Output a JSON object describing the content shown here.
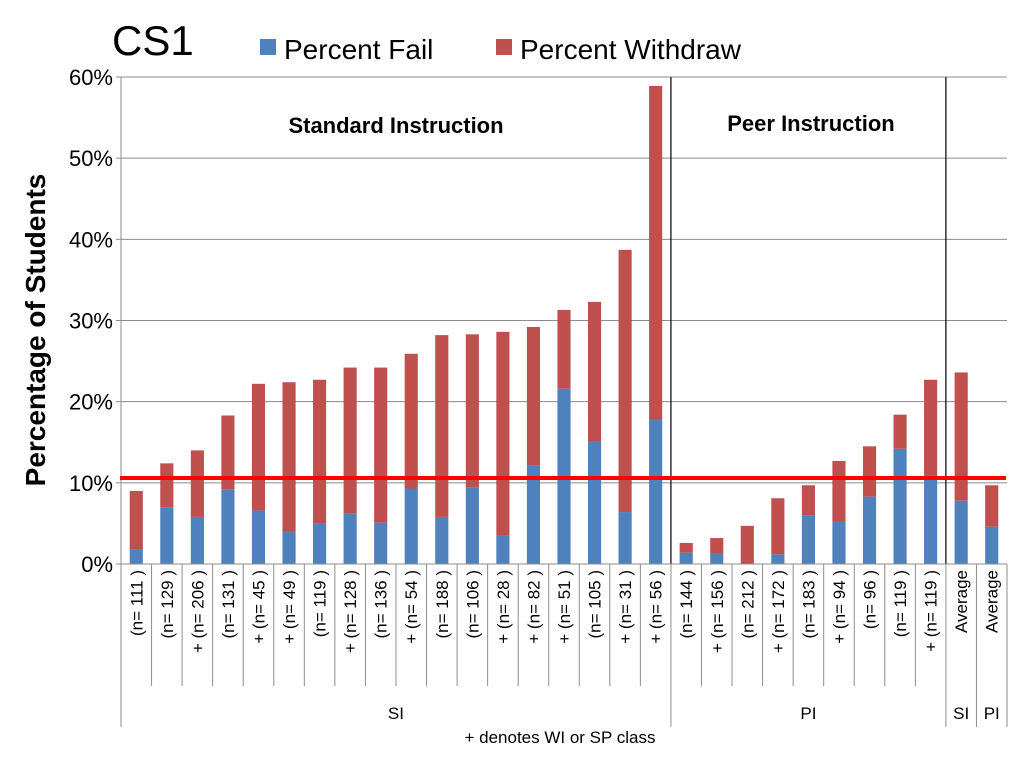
{
  "chart_data": {
    "type": "bar",
    "stacked": true,
    "title": "CS1",
    "xlabel": "",
    "ylabel": "Percentage of Students",
    "ylim": [
      0,
      60
    ],
    "yticks": [
      "0%",
      "10%",
      "20%",
      "30%",
      "40%",
      "50%",
      "60%"
    ],
    "grid": true,
    "legend_position": "top",
    "categories": [
      "(n= 111 )",
      "(n= 129 )",
      "+ (n= 206 )",
      "(n= 131 )",
      "+ (n= 45 )",
      "+ (n= 49 )",
      "(n= 119 )",
      "+ (n= 128 )",
      "(n= 136 )",
      "+ (n= 54 )",
      "(n= 188 )",
      "(n= 106 )",
      "+ (n= 28 )",
      "+ (n= 82 )",
      "+ (n= 51 )",
      "(n= 105 )",
      "+ (n= 31 )",
      "+ (n= 56 )",
      "(n= 144 )",
      "+ (n= 156 )",
      "(n= 212 )",
      "+ (n= 172 )",
      "(n= 183 )",
      "+ (n= 94 )",
      "(n= 96 )",
      "(n= 119 )",
      "+ (n= 119 )",
      "Average",
      "Average"
    ],
    "series": [
      {
        "name": "Percent Fail",
        "color": "#4F81BD",
        "values": [
          1.8,
          7.0,
          5.8,
          9.2,
          6.6,
          4.0,
          5.0,
          6.2,
          5.1,
          9.3,
          5.8,
          9.4,
          3.5,
          12.1,
          21.6,
          15.1,
          6.4,
          17.8,
          1.4,
          1.3,
          0.0,
          1.2,
          6.0,
          5.3,
          8.3,
          14.2,
          10.9,
          7.8,
          4.6
        ]
      },
      {
        "name": "Percent Withdraw",
        "color": "#C0504D",
        "values": [
          7.2,
          5.4,
          8.2,
          9.1,
          15.6,
          18.4,
          17.7,
          18.0,
          19.1,
          16.6,
          22.4,
          18.9,
          25.1,
          17.1,
          9.7,
          17.2,
          32.3,
          41.1,
          1.2,
          1.9,
          4.7,
          6.9,
          3.7,
          7.4,
          6.2,
          4.2,
          11.8,
          15.8,
          5.1
        ]
      }
    ],
    "groups": [
      {
        "label": "SI",
        "count": 18
      },
      {
        "label": "PI",
        "count": 9
      },
      {
        "label": "SI",
        "count": 1
      },
      {
        "label": "PI",
        "count": 1
      }
    ],
    "annotations": {
      "region_left": "Standard Instruction",
      "region_right": "Peer Instruction",
      "footnote": "+ denotes WI or SP class"
    },
    "reference_line": {
      "value": 10.6,
      "color": "#FF0000"
    }
  }
}
